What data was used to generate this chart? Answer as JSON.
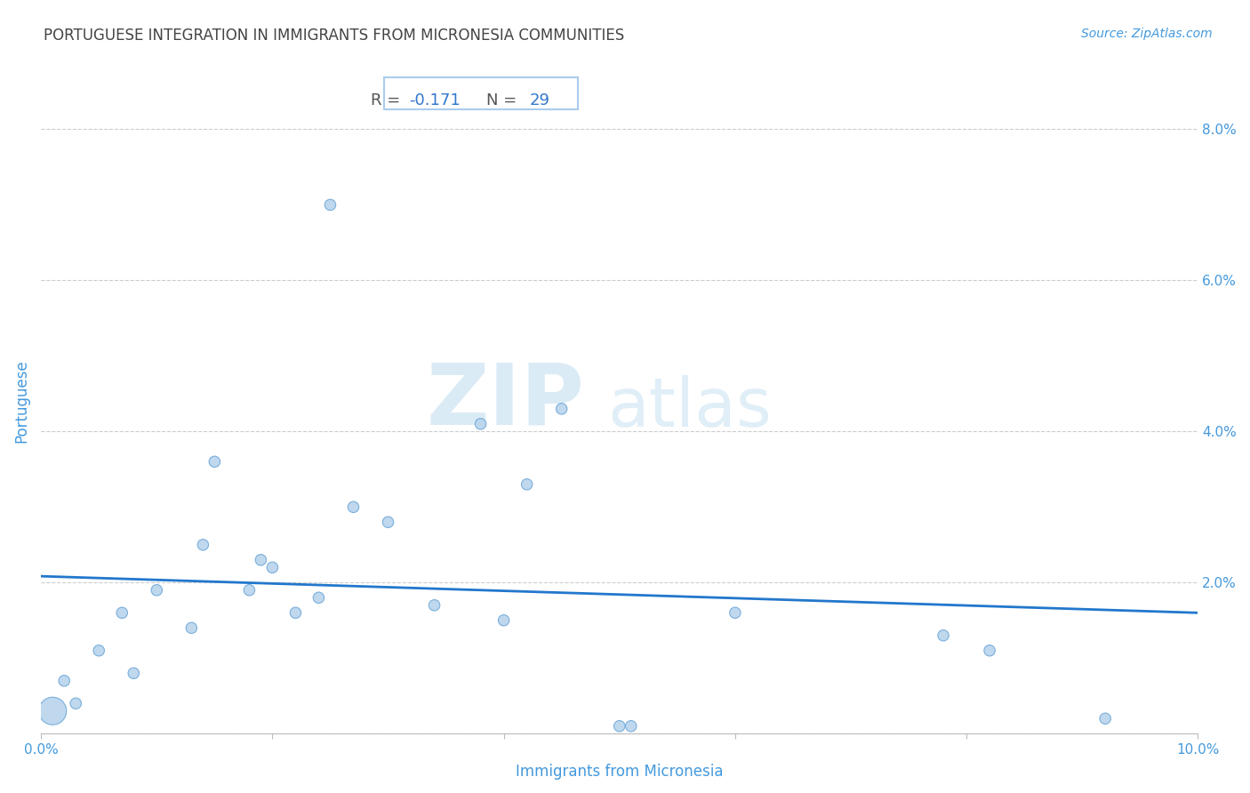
{
  "title": "PORTUGUESE INTEGRATION IN IMMIGRANTS FROM MICRONESIA COMMUNITIES",
  "source": "Source: ZipAtlas.com",
  "xlabel": "Immigrants from Micronesia",
  "ylabel": "Portuguese",
  "R_label": "R = ",
  "R_value": "-0.171",
  "N_label": "  N = ",
  "N_value": "29",
  "xlim": [
    0.0,
    0.1
  ],
  "ylim": [
    0.0,
    0.088
  ],
  "xticks": [
    0.0,
    0.02,
    0.04,
    0.06,
    0.08,
    0.1
  ],
  "yticks": [
    0.0,
    0.02,
    0.04,
    0.06,
    0.08
  ],
  "scatter_x": [
    0.001,
    0.002,
    0.003,
    0.005,
    0.007,
    0.008,
    0.01,
    0.013,
    0.014,
    0.015,
    0.018,
    0.019,
    0.02,
    0.022,
    0.024,
    0.025,
    0.027,
    0.03,
    0.034,
    0.038,
    0.04,
    0.042,
    0.045,
    0.05,
    0.051,
    0.06,
    0.078,
    0.082,
    0.092
  ],
  "scatter_y": [
    0.003,
    0.007,
    0.004,
    0.011,
    0.016,
    0.008,
    0.019,
    0.014,
    0.025,
    0.036,
    0.019,
    0.023,
    0.022,
    0.016,
    0.018,
    0.07,
    0.03,
    0.028,
    0.017,
    0.041,
    0.015,
    0.033,
    0.043,
    0.001,
    0.001,
    0.016,
    0.013,
    0.011,
    0.002
  ],
  "scatter_sizes": [
    500,
    80,
    80,
    80,
    80,
    80,
    80,
    80,
    80,
    80,
    80,
    80,
    80,
    80,
    80,
    80,
    80,
    80,
    80,
    80,
    80,
    80,
    80,
    80,
    80,
    80,
    80,
    80,
    80
  ],
  "dot_color": "#b8d4ed",
  "dot_edge_color": "#6fa8d8",
  "line_color": "#2277cc",
  "grid_color": "#cccccc",
  "title_color": "#444444",
  "source_color": "#4499dd",
  "axis_label_color": "#4499dd",
  "tick_label_color": "#4499dd",
  "stats_label_color": "#555555",
  "stats_value_color": "#3377cc",
  "stats_box_edge": "#aaccee",
  "background_color": "#ffffff",
  "watermark_color": "#d4e8f5",
  "watermark_zip_size": 70,
  "watermark_atlas_size": 55
}
